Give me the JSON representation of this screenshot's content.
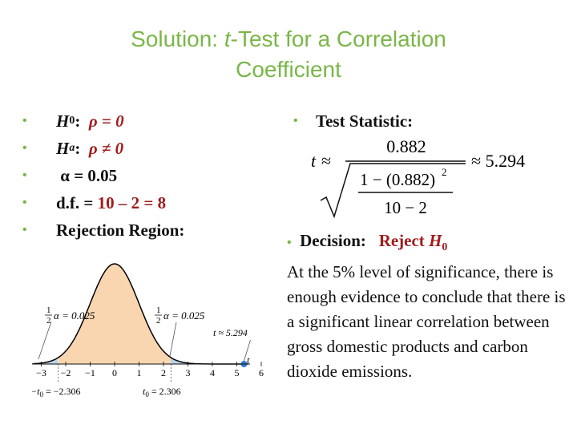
{
  "slide": {
    "title_line1_prefix": "Solution: ",
    "title_t": "t",
    "title_line1_suffix": "-Test for a Correlation",
    "title_line2": "Coefficient"
  },
  "left_bullets": {
    "h0_sym": "H",
    "h0_sub": "0",
    "h0_colon": ":",
    "h0_rel": "ρ = 0",
    "ha_sym": "H",
    "ha_sub": "a",
    "ha_colon": ":",
    "ha_rel": "ρ ≠ 0",
    "alpha": "α = 0.05",
    "df_label": "d.f. = ",
    "df_value": "10 – 2 = 8",
    "rejection": "Rejection Region:"
  },
  "test_statistic": {
    "label": "Test Statistic:",
    "t": "t",
    "approx": "≈",
    "numerator": "0.882",
    "inner": "1 − (0.882)",
    "inner_exp": "2",
    "inner_den": "10 − 2",
    "result": "≈ 5.294"
  },
  "decision": {
    "label": "Decision:",
    "reject": "Reject ",
    "reject_h": "H",
    "reject_sub": "0",
    "text": "At the 5% level of significance, there is enough evidence to conclude that there is a significant linear correlation between gross domestic products and carbon dioxide emissions."
  },
  "chart": {
    "left_tail_half": "1",
    "left_tail_den": "2",
    "left_tail_value": "α = 0.025",
    "right_tail_half": "1",
    "right_tail_den": "2",
    "right_tail_value": "α = 0.025",
    "t_marker": "t ≈ 5.294",
    "axis_var": "t",
    "left_crit": "−t",
    "left_crit_sub": "0",
    "left_crit_val": " = −2.306",
    "right_crit": "t",
    "right_crit_sub": "0",
    "right_crit_val": " = 2.306",
    "ticks": [
      "−3",
      "−2",
      "−1",
      "0",
      "1",
      "2",
      "3",
      "4",
      "5",
      "6"
    ],
    "critical_value": 2.306,
    "t_statistic": 5.294,
    "colors": {
      "center": "#f9d6b0",
      "tails": "#b9d3ea",
      "curve": "#000000",
      "marker": "#2e7bd6"
    }
  }
}
